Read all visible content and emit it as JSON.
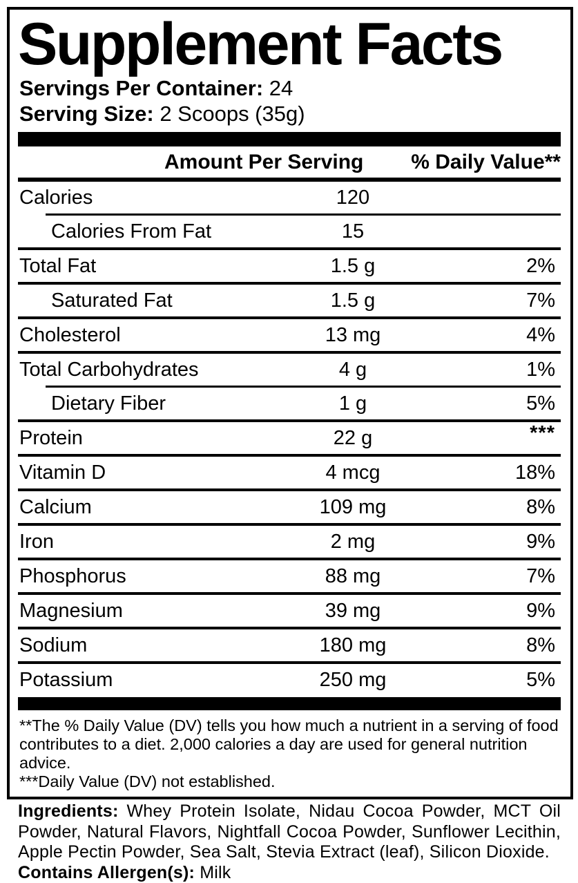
{
  "label": {
    "title": "Supplement Facts",
    "servings_per_container_label": "Servings Per Container:",
    "servings_per_container_value": "24",
    "serving_size_label": "Serving Size:",
    "serving_size_value": "2 Scoops (35g)",
    "header": {
      "amount": "Amount Per Serving",
      "daily_value": "% Daily Value**"
    },
    "rows": [
      {
        "name": "Calories",
        "amount": "120",
        "dv": "",
        "indent": false,
        "sep_after": "thin-indented"
      },
      {
        "name": "Calories From Fat",
        "amount": "15",
        "dv": "",
        "indent": true,
        "sep_after": "normal"
      },
      {
        "name": "Total Fat",
        "amount": "1.5 g",
        "dv": "2%",
        "indent": false,
        "sep_after": "normal"
      },
      {
        "name": "Saturated Fat",
        "amount": "1.5 g",
        "dv": "7%",
        "indent": true,
        "sep_after": "normal"
      },
      {
        "name": "Cholesterol",
        "amount": "13 mg",
        "dv": "4%",
        "indent": false,
        "sep_after": "normal"
      },
      {
        "name": "Total Carbohydrates",
        "amount": "4 g",
        "dv": "1%",
        "indent": false,
        "sep_after": "thin-indented"
      },
      {
        "name": "Dietary Fiber",
        "amount": "1 g",
        "dv": "5%",
        "indent": true,
        "sep_after": "normal"
      },
      {
        "name": "Protein",
        "amount": "22 g",
        "dv": "***",
        "indent": false,
        "sep_after": "normal"
      },
      {
        "name": "Vitamin D",
        "amount": "4 mcg",
        "dv": "18%",
        "indent": false,
        "sep_after": "normal"
      },
      {
        "name": "Calcium",
        "amount": "109 mg",
        "dv": "8%",
        "indent": false,
        "sep_after": "normal"
      },
      {
        "name": "Iron",
        "amount": "2 mg",
        "dv": "9%",
        "indent": false,
        "sep_after": "normal"
      },
      {
        "name": "Phosphorus",
        "amount": "88 mg",
        "dv": "7%",
        "indent": false,
        "sep_after": "normal"
      },
      {
        "name": "Magnesium",
        "amount": "39 mg",
        "dv": "9%",
        "indent": false,
        "sep_after": "normal"
      },
      {
        "name": "Sodium",
        "amount": "180 mg",
        "dv": "8%",
        "indent": false,
        "sep_after": "normal"
      },
      {
        "name": "Potassium",
        "amount": "250 mg",
        "dv": "5%",
        "indent": false,
        "sep_after": "none"
      }
    ],
    "footnotes": [
      "**The % Daily Value (DV) tells you how much a nutrient in a serving of food contributes to a diet. 2,000 calories a day are used for general nutrition advice.",
      "***Daily Value (DV) not established."
    ],
    "ingredients_label": "Ingredients:",
    "ingredients_text": "Whey Protein Isolate, Nidau Cocoa Powder, MCT Oil Powder, Natural Flavors, Nightfall Cocoa Powder, Sunflower Lecithin, Apple Pectin Powder, Sea Salt, Stevia Extract (leaf), Silicon Dioxide.",
    "allergen_label": "Contains Allergen(s):",
    "allergen_value": "Milk",
    "colors": {
      "ink": "#000000",
      "background": "#ffffff"
    }
  }
}
